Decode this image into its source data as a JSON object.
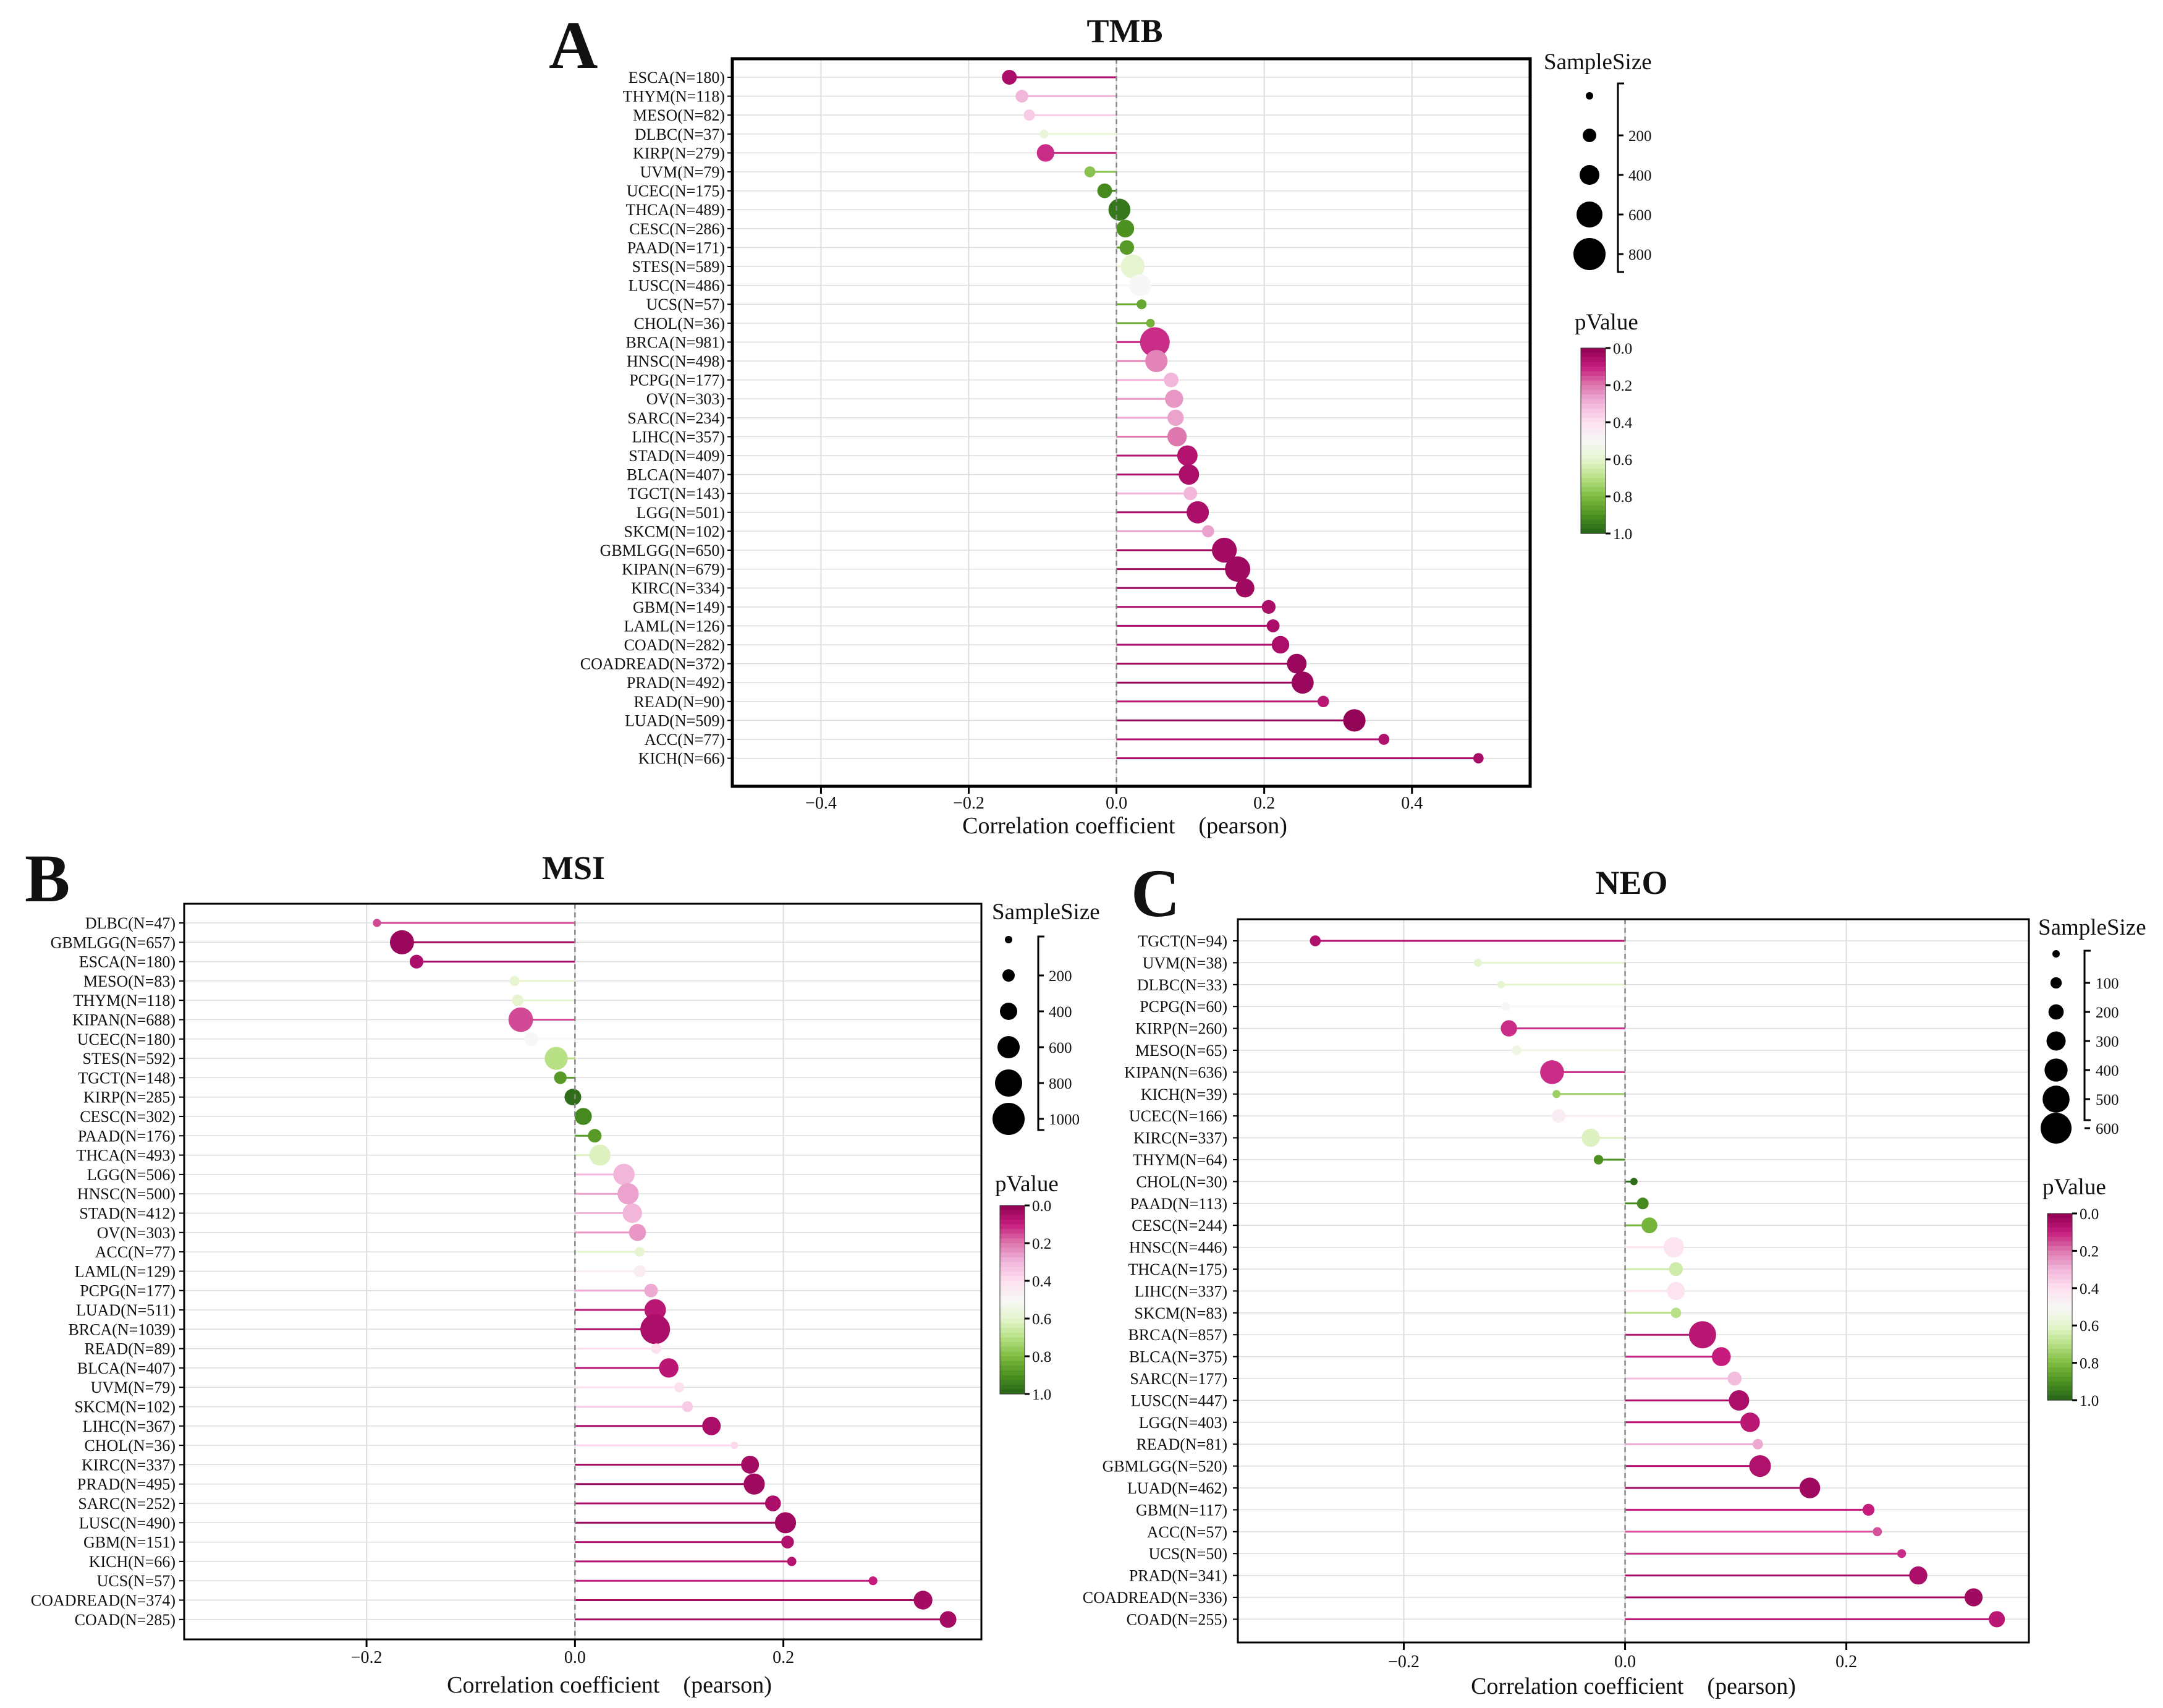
{
  "panels": [
    {
      "letter": "A",
      "title": "TMB",
      "xlabel": "Correlation coefficient　(pearson)",
      "size_legend_title": "SampleSize",
      "size_legend_values": [
        "200",
        "400",
        "600",
        "800"
      ],
      "p_legend_title": "pValue",
      "p_legend_ticks": [
        "0.0",
        "0.2",
        "0.4",
        "0.6",
        "0.8",
        "1.0"
      ]
    },
    {
      "letter": "B",
      "title": "MSI",
      "xlabel": "Correlation coefficient　(pearson)",
      "size_legend_title": "SampleSize",
      "size_legend_values": [
        "200",
        "400",
        "600",
        "800",
        "1000"
      ],
      "p_legend_title": "pValue",
      "p_legend_ticks": [
        "0.0",
        "0.2",
        "0.4",
        "0.6",
        "0.8",
        "1.0"
      ]
    },
    {
      "letter": "C",
      "title": "NEO",
      "xlabel": "Correlation coefficient　(pearson)",
      "size_legend_title": "SampleSize",
      "size_legend_values": [
        "100",
        "200",
        "300",
        "400",
        "500",
        "600"
      ],
      "p_legend_title": "pValue",
      "p_legend_ticks": [
        "0.0",
        "0.2",
        "0.4",
        "0.6",
        "0.8",
        "1.0"
      ]
    }
  ],
  "colors": {
    "p_scale": [
      "#8e0152",
      "#c51b7d",
      "#de77ae",
      "#f1b6da",
      "#fde0ef",
      "#f7f7f7",
      "#e6f5d0",
      "#b8e186",
      "#7fbc41",
      "#4d9221",
      "#276419"
    ],
    "grid": "#dddddd",
    "zero_line": "#888888"
  },
  "chart_data": [
    {
      "type": "lollipop",
      "title": "TMB",
      "xlabel": "Correlation coefficient　(pearson)",
      "xlim": [
        -0.52,
        0.56
      ],
      "xticks": [
        -0.4,
        -0.2,
        0.0,
        0.2,
        0.4
      ],
      "xtick_labels": [
        "−0.4",
        "−0.2",
        "0.0",
        "0.2",
        "0.4"
      ],
      "size_range": [
        36,
        981
      ],
      "categories": [
        "ESCA(N=180)",
        "THYM(N=118)",
        "MESO(N=82)",
        "DLBC(N=37)",
        "KIRP(N=279)",
        "UVM(N=79)",
        "UCEC(N=175)",
        "THCA(N=489)",
        "CESC(N=286)",
        "PAAD(N=171)",
        "STES(N=589)",
        "LUSC(N=486)",
        "UCS(N=57)",
        "CHOL(N=36)",
        "BRCA(N=981)",
        "HNSC(N=498)",
        "PCPG(N=177)",
        "OV(N=303)",
        "SARC(N=234)",
        "LIHC(N=357)",
        "STAD(N=409)",
        "BLCA(N=407)",
        "TGCT(N=143)",
        "LGG(N=501)",
        "SKCM(N=102)",
        "GBMLGG(N=650)",
        "KIPAN(N=679)",
        "KIRC(N=334)",
        "GBM(N=149)",
        "LAML(N=126)",
        "COAD(N=282)",
        "COADREAD(N=372)",
        "PRAD(N=492)",
        "READ(N=90)",
        "LUAD(N=509)",
        "ACC(N=77)",
        "KICH(N=66)"
      ],
      "correlation": [
        -0.145,
        -0.128,
        -0.118,
        -0.098,
        -0.096,
        -0.036,
        -0.016,
        0.004,
        0.012,
        0.014,
        0.022,
        0.032,
        0.034,
        0.046,
        0.052,
        0.054,
        0.074,
        0.078,
        0.08,
        0.082,
        0.096,
        0.098,
        0.1,
        0.11,
        0.124,
        0.146,
        0.164,
        0.174,
        0.206,
        0.212,
        0.222,
        0.244,
        0.252,
        0.28,
        0.322,
        0.362,
        0.49
      ],
      "sample_size": [
        180,
        118,
        82,
        37,
        279,
        79,
        175,
        489,
        286,
        171,
        589,
        486,
        57,
        36,
        981,
        498,
        177,
        303,
        234,
        357,
        409,
        407,
        143,
        501,
        102,
        650,
        679,
        334,
        149,
        126,
        282,
        372,
        492,
        90,
        509,
        77,
        66
      ],
      "pvalue": [
        0.05,
        0.3,
        0.35,
        0.58,
        0.12,
        0.78,
        0.92,
        0.96,
        0.9,
        0.88,
        0.6,
        0.5,
        0.85,
        0.82,
        0.12,
        0.22,
        0.3,
        0.25,
        0.27,
        0.2,
        0.07,
        0.05,
        0.3,
        0.05,
        0.27,
        0.04,
        0.03,
        0.03,
        0.05,
        0.05,
        0.05,
        0.02,
        0.02,
        0.08,
        0.01,
        0.06,
        0.05
      ]
    },
    {
      "type": "lollipop",
      "title": "MSI",
      "xlabel": "Correlation coefficient　(pearson)",
      "xlim": [
        -0.375,
        0.39
      ],
      "xticks": [
        -0.2,
        0.0,
        0.2
      ],
      "xtick_labels": [
        "−0.2",
        "0.0",
        "0.2"
      ],
      "size_range": [
        36,
        1039
      ],
      "categories": [
        "DLBC(N=47)",
        "GBMLGG(N=657)",
        "ESCA(N=180)",
        "MESO(N=83)",
        "THYM(N=118)",
        "KIPAN(N=688)",
        "UCEC(N=180)",
        "STES(N=592)",
        "TGCT(N=148)",
        "KIRP(N=285)",
        "CESC(N=302)",
        "PAAD(N=176)",
        "THCA(N=493)",
        "LGG(N=506)",
        "HNSC(N=500)",
        "STAD(N=412)",
        "OV(N=303)",
        "ACC(N=77)",
        "LAML(N=129)",
        "PCPG(N=177)",
        "LUAD(N=511)",
        "BRCA(N=1039)",
        "READ(N=89)",
        "BLCA(N=407)",
        "UVM(N=79)",
        "SKCM(N=102)",
        "LIHC(N=367)",
        "CHOL(N=36)",
        "KIRC(N=337)",
        "PRAD(N=495)",
        "SARC(N=252)",
        "LUSC(N=490)",
        "GBM(N=151)",
        "KICH(N=66)",
        "UCS(N=57)",
        "COADREAD(N=374)",
        "COAD(N=285)"
      ],
      "correlation": [
        -0.19,
        -0.166,
        -0.152,
        -0.058,
        -0.055,
        -0.052,
        -0.042,
        -0.018,
        -0.014,
        -0.002,
        0.008,
        0.019,
        0.024,
        0.047,
        0.051,
        0.055,
        0.06,
        0.062,
        0.062,
        0.073,
        0.077,
        0.077,
        0.078,
        0.09,
        0.1,
        0.108,
        0.131,
        0.153,
        0.168,
        0.172,
        0.19,
        0.202,
        0.204,
        0.208,
        0.286,
        0.334,
        0.358
      ],
      "sample_size": [
        47,
        657,
        180,
        83,
        118,
        688,
        180,
        592,
        148,
        285,
        302,
        176,
        493,
        506,
        500,
        412,
        303,
        77,
        129,
        177,
        511,
        1039,
        89,
        407,
        79,
        102,
        367,
        36,
        337,
        495,
        252,
        490,
        151,
        66,
        57,
        374,
        285
      ],
      "pvalue": [
        0.15,
        0.02,
        0.05,
        0.6,
        0.6,
        0.15,
        0.5,
        0.7,
        0.88,
        0.98,
        0.92,
        0.88,
        0.62,
        0.3,
        0.27,
        0.3,
        0.25,
        0.6,
        0.45,
        0.28,
        0.08,
        0.05,
        0.4,
        0.08,
        0.4,
        0.35,
        0.05,
        0.38,
        0.04,
        0.03,
        0.05,
        0.03,
        0.06,
        0.07,
        0.1,
        0.04,
        0.04
      ]
    },
    {
      "type": "lollipop",
      "title": "NEO",
      "xlabel": "Correlation coefficient　(pearson)",
      "xlim": [
        -0.35,
        0.365
      ],
      "xticks": [
        -0.2,
        0.0,
        0.2
      ],
      "xtick_labels": [
        "−0.2",
        "0.0",
        "0.2"
      ],
      "size_range": [
        30,
        857
      ],
      "categories": [
        "TGCT(N=94)",
        "UVM(N=38)",
        "DLBC(N=33)",
        "PCPG(N=60)",
        "KIRP(N=260)",
        "MESO(N=65)",
        "KIPAN(N=636)",
        "KICH(N=39)",
        "UCEC(N=166)",
        "KIRC(N=337)",
        "THYM(N=64)",
        "CHOL(N=30)",
        "PAAD(N=113)",
        "CESC(N=244)",
        "HNSC(N=446)",
        "THCA(N=175)",
        "LIHC(N=337)",
        "SKCM(N=83)",
        "BRCA(N=857)",
        "BLCA(N=375)",
        "SARC(N=177)",
        "LUSC(N=447)",
        "LGG(N=403)",
        "READ(N=81)",
        "GBMLGG(N=520)",
        "LUAD(N=462)",
        "GBM(N=117)",
        "ACC(N=57)",
        "UCS(N=50)",
        "PRAD(N=341)",
        "COADREAD(N=336)",
        "COAD(N=255)"
      ],
      "correlation": [
        -0.28,
        -0.133,
        -0.112,
        -0.108,
        -0.105,
        -0.098,
        -0.066,
        -0.062,
        -0.06,
        -0.031,
        -0.024,
        0.008,
        0.016,
        0.022,
        0.044,
        0.046,
        0.046,
        0.046,
        0.07,
        0.087,
        0.099,
        0.103,
        0.113,
        0.12,
        0.122,
        0.167,
        0.22,
        0.228,
        0.25,
        0.265,
        0.315,
        0.336
      ],
      "sample_size": [
        94,
        38,
        33,
        60,
        260,
        65,
        636,
        39,
        166,
        337,
        64,
        30,
        113,
        244,
        446,
        175,
        337,
        83,
        857,
        375,
        177,
        447,
        403,
        81,
        520,
        462,
        117,
        57,
        50,
        341,
        336,
        255
      ],
      "pvalue": [
        0.06,
        0.6,
        0.6,
        0.5,
        0.12,
        0.55,
        0.12,
        0.75,
        0.45,
        0.62,
        0.9,
        0.98,
        0.92,
        0.82,
        0.42,
        0.65,
        0.42,
        0.7,
        0.08,
        0.1,
        0.32,
        0.05,
        0.08,
        0.28,
        0.06,
        0.03,
        0.1,
        0.16,
        0.12,
        0.05,
        0.03,
        0.08
      ]
    }
  ]
}
